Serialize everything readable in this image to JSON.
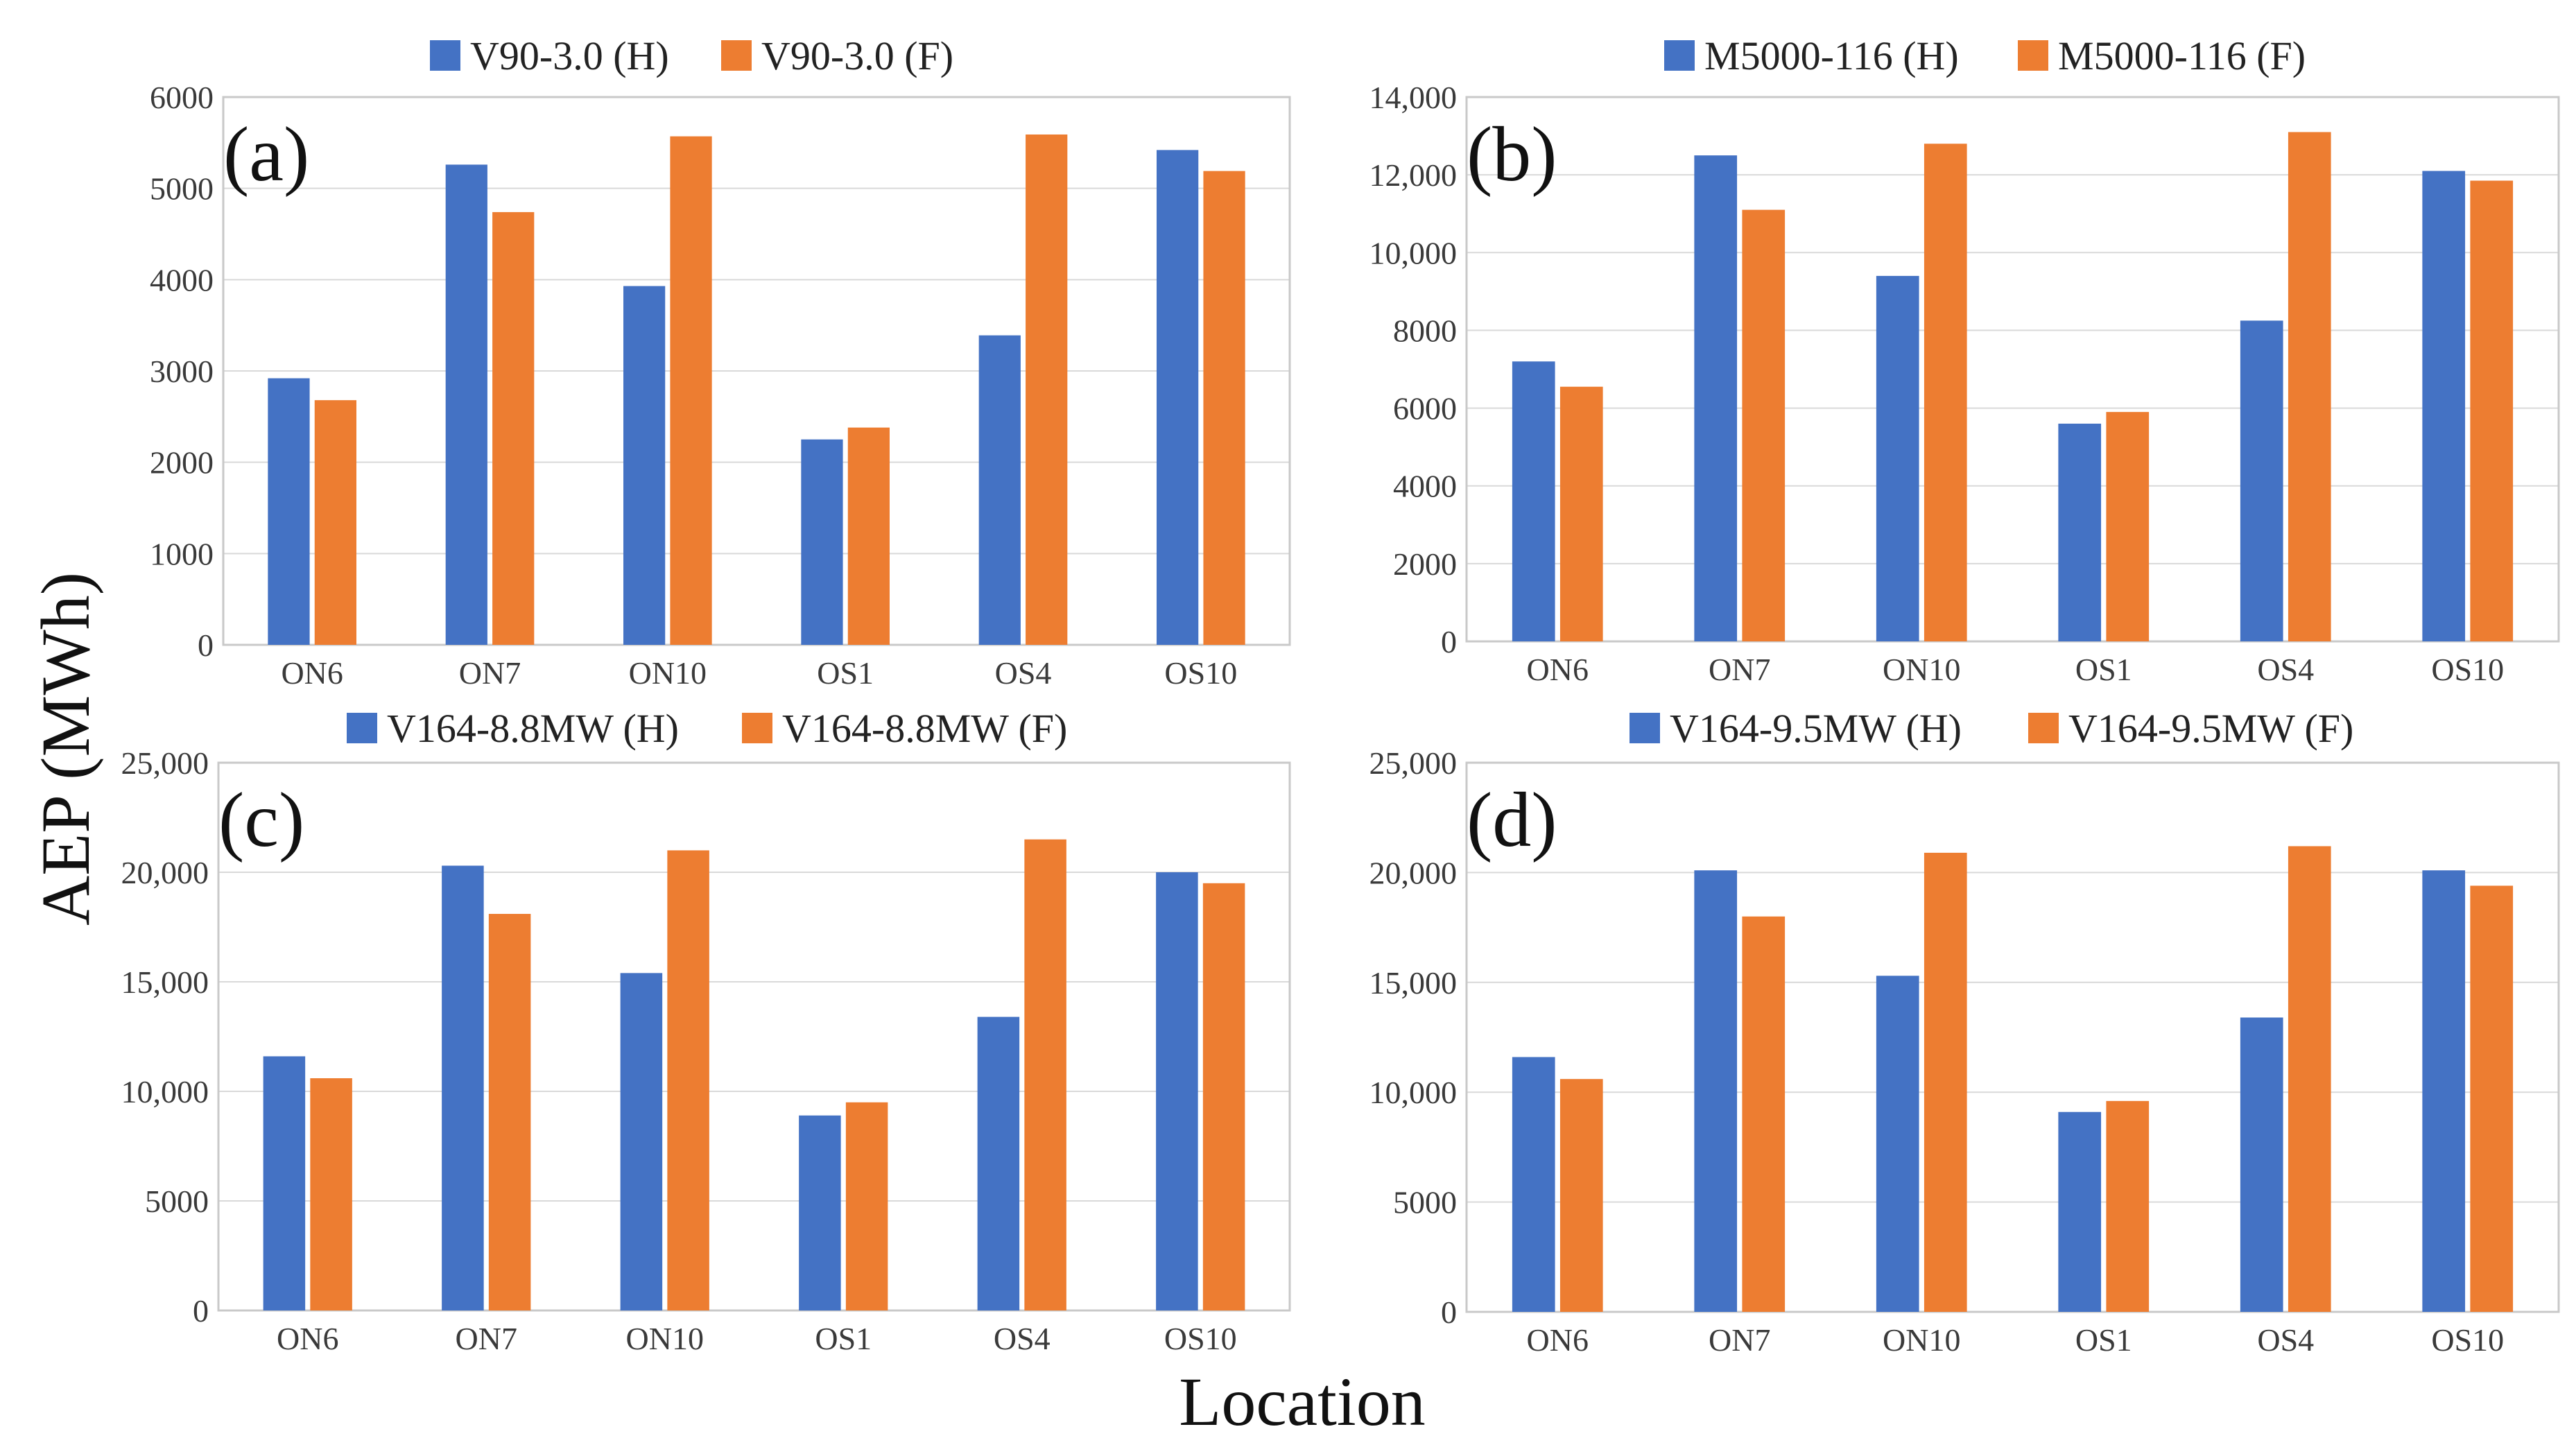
{
  "colors": {
    "H": "#4472C4",
    "F": "#ED7D31"
  },
  "ylabel": "AEP (MWh)",
  "xlabel": "Location",
  "chart_data": [
    {
      "type": "bar",
      "panel": "(a)",
      "categories": [
        "ON6",
        "ON7",
        "ON10",
        "OS1",
        "OS4",
        "OS10"
      ],
      "series": [
        {
          "name": "V90-3.0 (H)",
          "values": [
            2920,
            5260,
            3930,
            2250,
            3390,
            5420
          ]
        },
        {
          "name": "V90-3.0 (F)",
          "values": [
            2680,
            4740,
            5570,
            2380,
            5590,
            5190
          ]
        }
      ],
      "ylim": [
        0,
        6000
      ],
      "yticks": [
        0,
        1000,
        2000,
        3000,
        4000,
        5000,
        6000
      ],
      "ytick_labels": [
        "0",
        "1000",
        "2000",
        "3000",
        "4000",
        "5000",
        "6000"
      ],
      "legend_position": "top-center"
    },
    {
      "type": "bar",
      "panel": "(b)",
      "categories": [
        "ON6",
        "ON7",
        "ON10",
        "OS1",
        "OS4",
        "OS10"
      ],
      "series": [
        {
          "name": "M5000-116 (H)",
          "values": [
            7200,
            12500,
            9400,
            5600,
            8250,
            12100
          ]
        },
        {
          "name": "M5000-116 (F)",
          "values": [
            6550,
            11100,
            12800,
            5900,
            13100,
            11850
          ]
        }
      ],
      "ylim": [
        0,
        14000
      ],
      "yticks": [
        0,
        2000,
        4000,
        6000,
        8000,
        10000,
        12000,
        14000
      ],
      "ytick_labels": [
        "0",
        "2000",
        "4000",
        "6000",
        "8000",
        "10,000",
        "12,000",
        "14,000"
      ],
      "legend_position": "top-center"
    },
    {
      "type": "bar",
      "panel": "(c)",
      "categories": [
        "ON6",
        "ON7",
        "ON10",
        "OS1",
        "OS4",
        "OS10"
      ],
      "series": [
        {
          "name": "V164-8.8MW (H)",
          "values": [
            11600,
            20300,
            15400,
            8900,
            13400,
            20000
          ]
        },
        {
          "name": "V164-8.8MW (F)",
          "values": [
            10600,
            18100,
            21000,
            9500,
            21500,
            19500
          ]
        }
      ],
      "ylim": [
        0,
        25000
      ],
      "yticks": [
        0,
        5000,
        10000,
        15000,
        20000,
        25000
      ],
      "ytick_labels": [
        "0",
        "5000",
        "10,000",
        "15,000",
        "20,000",
        "25,000"
      ],
      "legend_position": "top-center"
    },
    {
      "type": "bar",
      "panel": "(d)",
      "categories": [
        "ON6",
        "ON7",
        "ON10",
        "OS1",
        "OS4",
        "OS10"
      ],
      "series": [
        {
          "name": "V164-9.5MW (H)",
          "values": [
            11600,
            20100,
            15300,
            9100,
            13400,
            20100
          ]
        },
        {
          "name": "V164-9.5MW (F)",
          "values": [
            10600,
            18000,
            20900,
            9600,
            21200,
            19400
          ]
        }
      ],
      "ylim": [
        0,
        25000
      ],
      "yticks": [
        0,
        5000,
        10000,
        15000,
        20000,
        25000
      ],
      "ytick_labels": [
        "0",
        "5000",
        "10,000",
        "15,000",
        "20,000",
        "25,000"
      ],
      "legend_position": "top-center"
    }
  ]
}
